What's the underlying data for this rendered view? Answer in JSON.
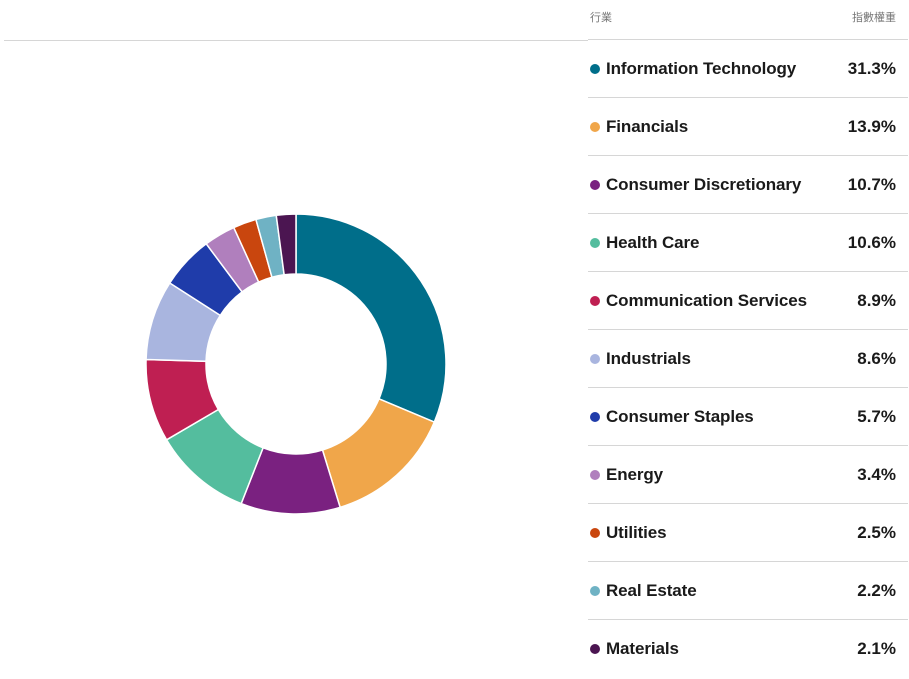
{
  "header": {
    "sector_label": "行業",
    "weight_label": "指數權重"
  },
  "chart_data": {
    "type": "pie",
    "variant": "donut",
    "unit": "%",
    "categories": [
      "Information Technology",
      "Financials",
      "Consumer Discretionary",
      "Health Care",
      "Communication Services",
      "Industrials",
      "Consumer Staples",
      "Energy",
      "Utilities",
      "Real Estate",
      "Materials"
    ],
    "values": [
      31.3,
      13.9,
      10.7,
      10.6,
      8.9,
      8.6,
      5.7,
      3.4,
      2.5,
      2.2,
      2.1
    ],
    "labels": [
      "31.3%",
      "13.9%",
      "10.7%",
      "10.6%",
      "8.9%",
      "8.6%",
      "5.7%",
      "3.4%",
      "2.5%",
      "2.2%",
      "2.1%"
    ],
    "colors": [
      "#006e8a",
      "#f0a64a",
      "#7a2180",
      "#54bd9e",
      "#bf1f52",
      "#a9b5df",
      "#1f3caa",
      "#b07fbd",
      "#c9460e",
      "#6fb2c4",
      "#4b1551"
    ],
    "legend_position": "right"
  }
}
